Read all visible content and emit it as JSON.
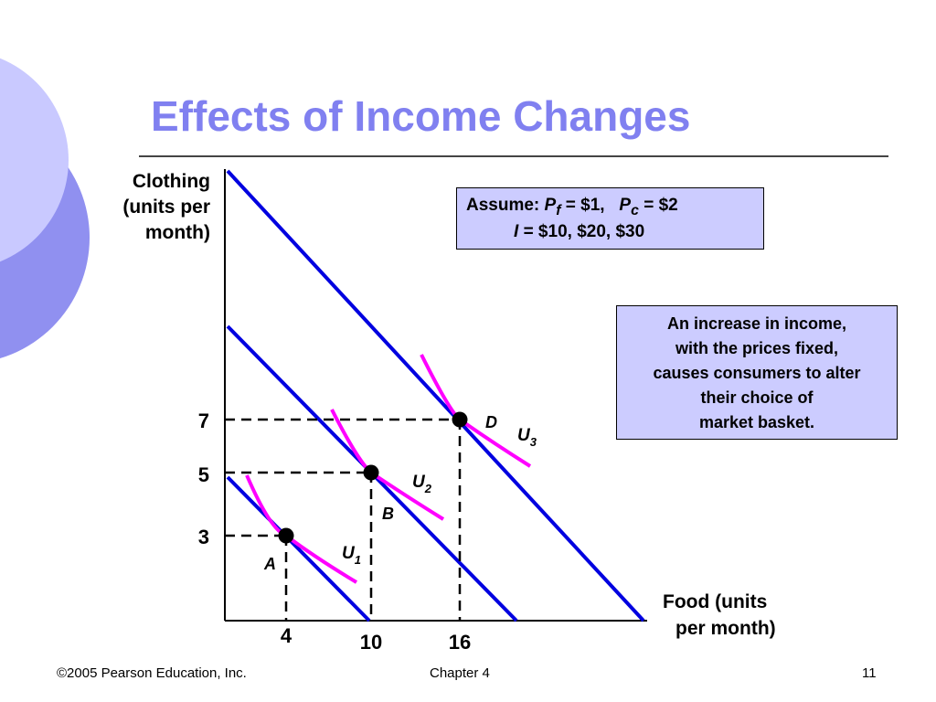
{
  "slide": {
    "title": "Effects of Income Changes",
    "colors": {
      "title": "#8080f0",
      "budget_line": "#0000e0",
      "indifference_curve": "#ff00ff",
      "box_fill": "#ccccff"
    }
  },
  "axes": {
    "y_label_lines": [
      "Clothing",
      "(units per",
      "month)"
    ],
    "x_label_lines": [
      "Food (units",
      "per month)"
    ]
  },
  "assume_box": {
    "assume_word": "Assume:",
    "pf_symbol": "P",
    "pf_sub": "f",
    "pf_eq": "= $1,",
    "pc_symbol": "P",
    "pc_sub": "c",
    "pc_eq": "= $2",
    "income_symbol": "I",
    "income_eq": "= $10, $20, $30"
  },
  "note_box": {
    "lines": [
      "An increase in income,",
      "with the prices fixed,",
      "causes consumers to alter",
      "their choice of",
      "market basket."
    ]
  },
  "chart_data": {
    "type": "diagram",
    "x_ticks": [
      "4",
      "10",
      "16"
    ],
    "y_ticks": [
      "7",
      "5",
      "3"
    ],
    "points": [
      {
        "label": "A",
        "x": 4,
        "y": 3
      },
      {
        "label": "B",
        "x": 10,
        "y": 5
      },
      {
        "label": "D",
        "x": 16,
        "y": 7
      }
    ],
    "curves": [
      {
        "label": "U",
        "sub": "1"
      },
      {
        "label": "U",
        "sub": "2"
      },
      {
        "label": "U",
        "sub": "3"
      }
    ]
  },
  "footer": {
    "copyright": "©2005 Pearson Education, Inc.",
    "chapter": "Chapter 4",
    "page": "11"
  }
}
